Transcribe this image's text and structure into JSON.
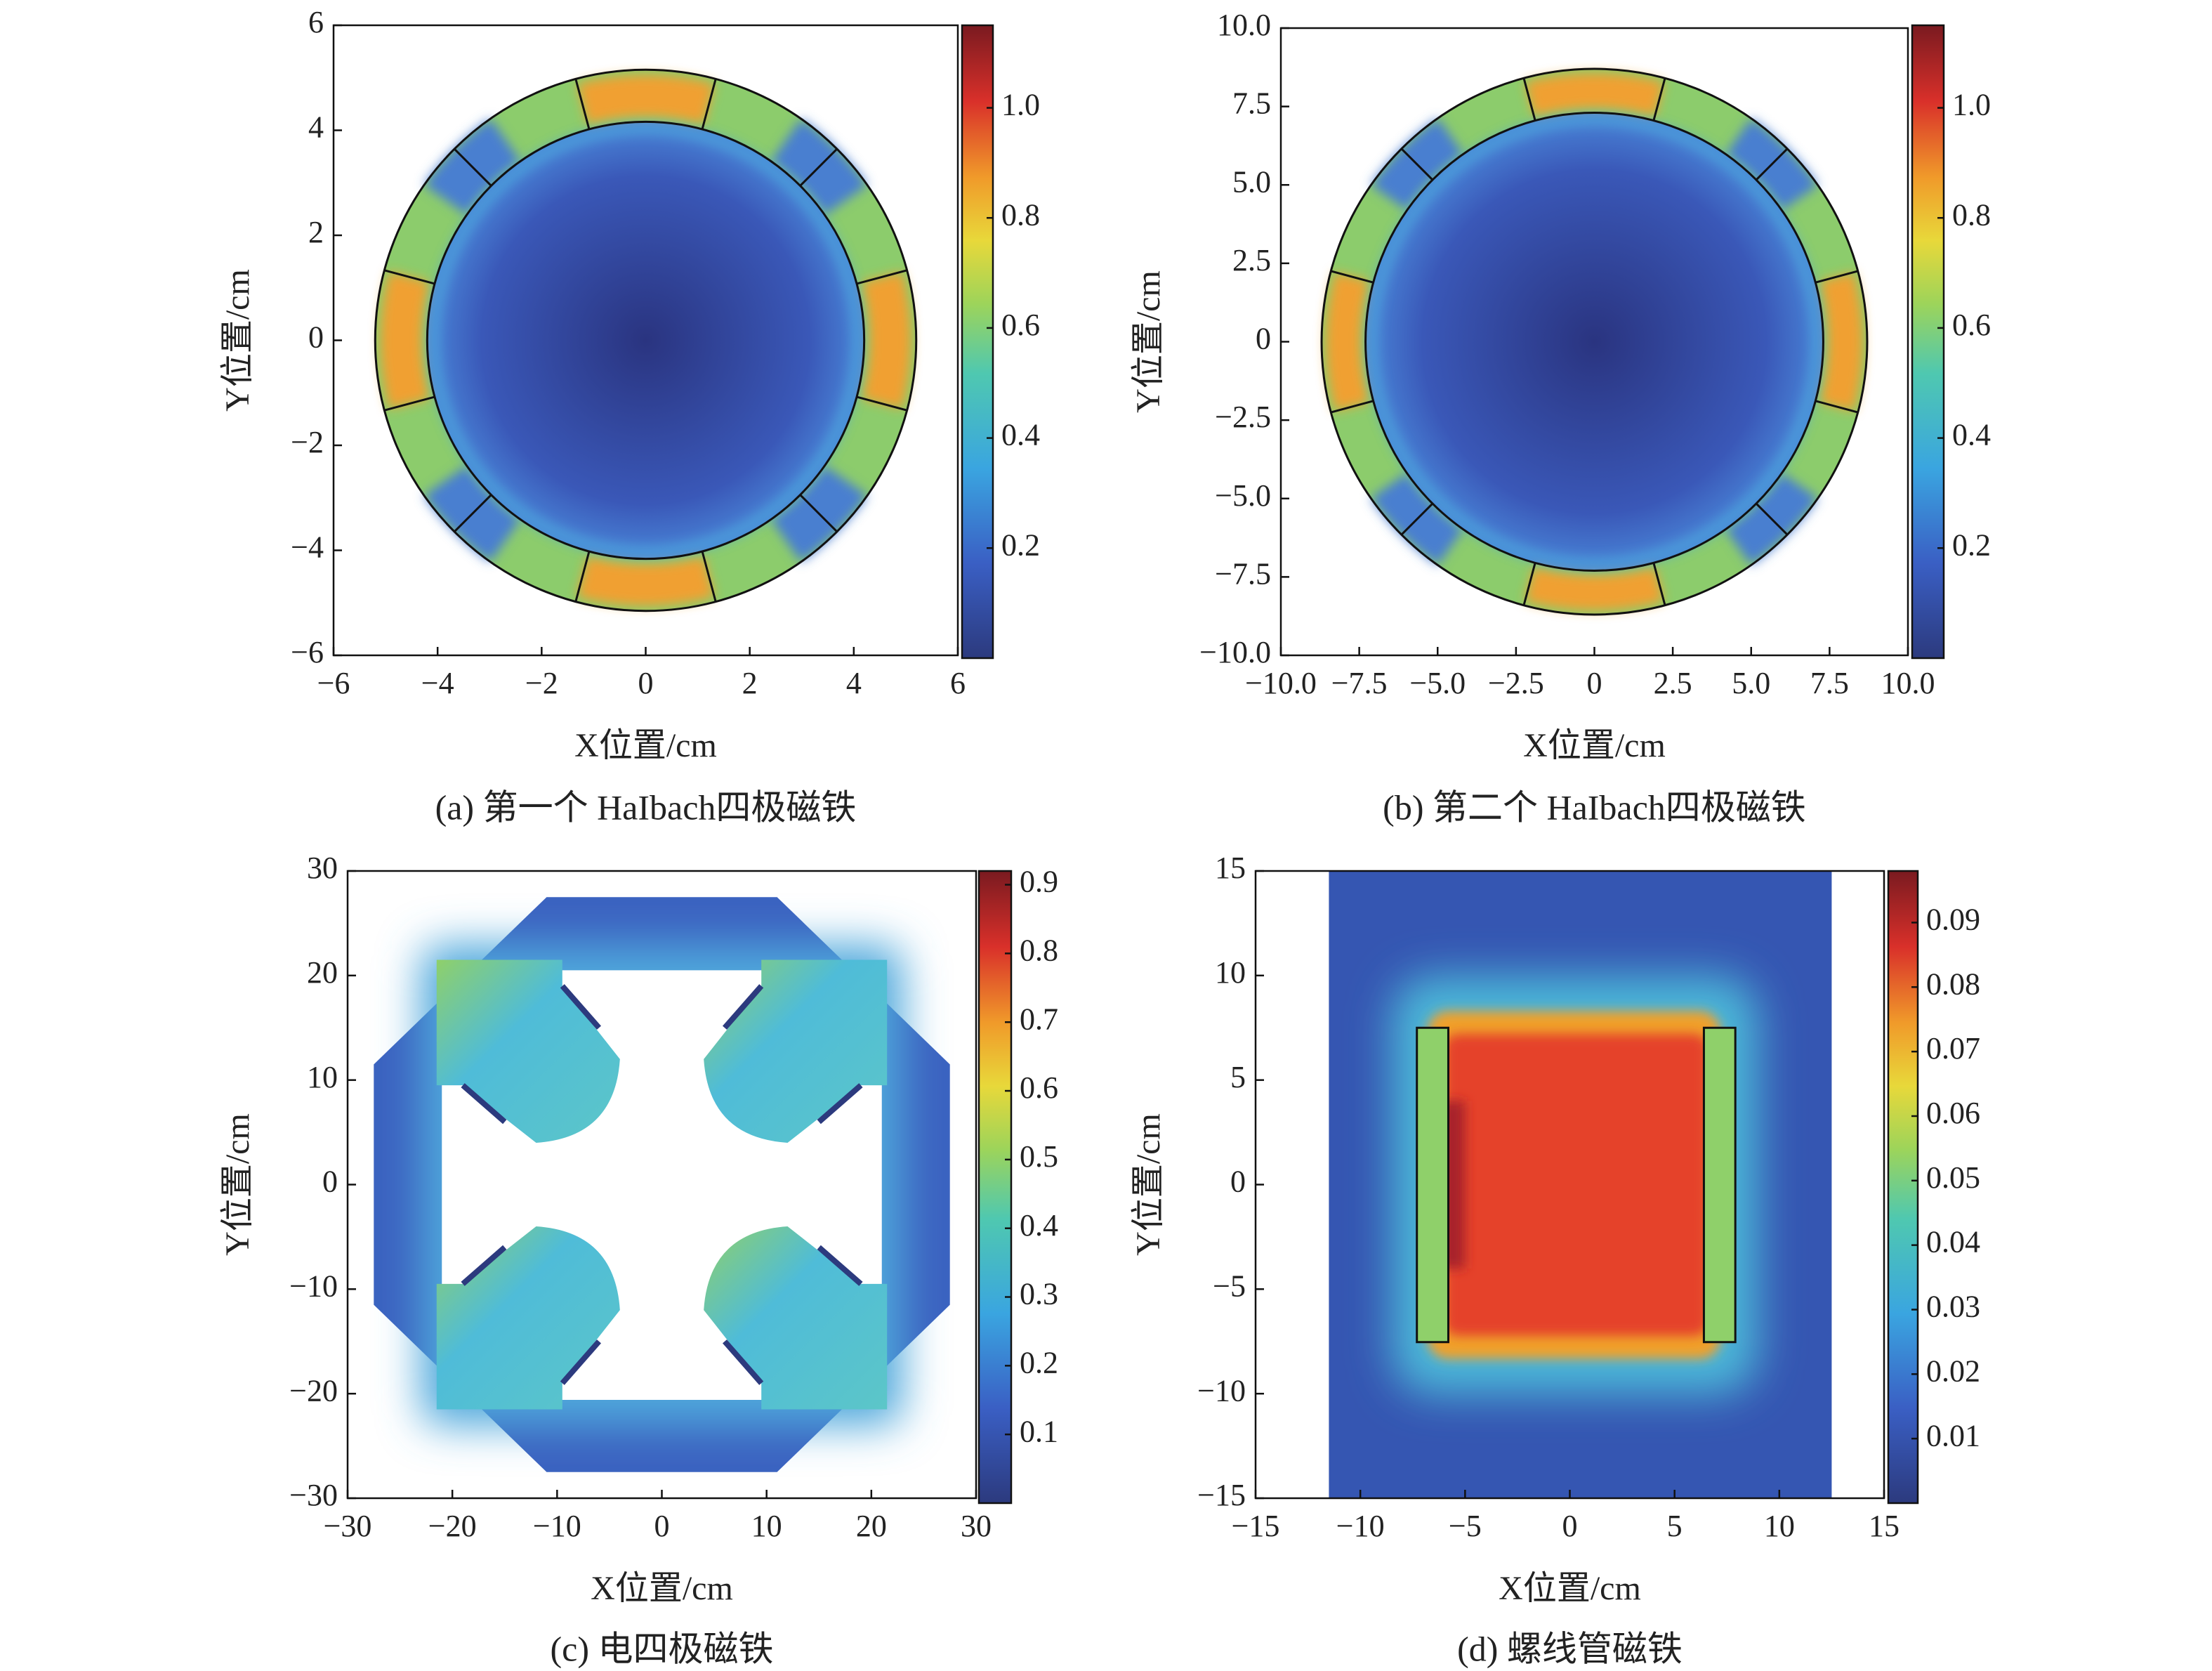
{
  "chart_data": [
    {
      "type": "heatmap",
      "caption": "(a) 第一个 HaIbach四极磁铁",
      "xlabel": "X位置/cm",
      "ylabel": "Y位置/cm",
      "xlim": [
        -6,
        6
      ],
      "ylim": [
        -6,
        6
      ],
      "xticks": [
        {
          "value": -6,
          "label": "−6"
        },
        {
          "value": -4,
          "label": "−4"
        },
        {
          "value": -2,
          "label": "−2"
        },
        0,
        2,
        4,
        6
      ],
      "yticks": [
        {
          "value": -6,
          "label": "−6"
        },
        {
          "value": -4,
          "label": "−4"
        },
        {
          "value": -2,
          "label": "−2"
        },
        0,
        2,
        4,
        6
      ],
      "colorbar": {
        "lim": [
          0,
          1.15
        ],
        "ticks": [
          0.2,
          0.4,
          0.6,
          0.8,
          {
            "value": 1,
            "label": "1.0"
          }
        ]
      }
    },
    {
      "type": "heatmap",
      "caption": "(b) 第二个 HaIbach四极磁铁",
      "xlabel": "X位置/cm",
      "ylabel": "Y位置/cm",
      "xlim": [
        -10,
        10
      ],
      "ylim": [
        -10,
        10
      ],
      "xticks": [
        {
          "value": -10,
          "label": "−10.0"
        },
        {
          "value": -7.5,
          "label": "−7.5"
        },
        {
          "value": -5,
          "label": "−5.0"
        },
        {
          "value": -2.5,
          "label": "−2.5"
        },
        0,
        2.5,
        {
          "value": 5,
          "label": "5.0"
        },
        7.5,
        {
          "value": 10,
          "label": "10.0"
        }
      ],
      "yticks": [
        {
          "value": -10,
          "label": "−10.0"
        },
        {
          "value": -7.5,
          "label": "−7.5"
        },
        {
          "value": -5,
          "label": "−5.0"
        },
        {
          "value": -2.5,
          "label": "−2.5"
        },
        0,
        2.5,
        {
          "value": 5,
          "label": "5.0"
        },
        7.5,
        {
          "value": 10,
          "label": "10.0"
        }
      ],
      "colorbar": {
        "lim": [
          0,
          1.15
        ],
        "ticks": [
          0.2,
          0.4,
          0.6,
          0.8,
          {
            "value": 1,
            "label": "1.0"
          }
        ]
      }
    },
    {
      "type": "heatmap",
      "caption": "(c) 电四极磁铁",
      "xlabel": "X位置/cm",
      "ylabel": "Y位置/cm",
      "xlim": [
        -30,
        30
      ],
      "ylim": [
        -30,
        30
      ],
      "xticks": [
        {
          "value": -30,
          "label": "−30"
        },
        {
          "value": -20,
          "label": "−20"
        },
        {
          "value": -10,
          "label": "−10"
        },
        0,
        10,
        20,
        30
      ],
      "yticks": [
        {
          "value": -30,
          "label": "−30"
        },
        {
          "value": -20,
          "label": "−20"
        },
        {
          "value": -10,
          "label": "−10"
        },
        0,
        10,
        20,
        30
      ],
      "colorbar": {
        "lim": [
          0,
          0.92
        ],
        "ticks": [
          0.1,
          0.2,
          0.3,
          0.4,
          0.5,
          0.6,
          0.7,
          0.8,
          0.9
        ]
      }
    },
    {
      "type": "heatmap",
      "caption": "(d) 螺线管磁铁",
      "xlabel": "X位置/cm",
      "ylabel": "Y位置/cm",
      "xlim": [
        -15,
        15
      ],
      "ylim": [
        -15,
        15
      ],
      "xticks": [
        {
          "value": -15,
          "label": "−15"
        },
        {
          "value": -10,
          "label": "−10"
        },
        {
          "value": -5,
          "label": "−5"
        },
        0,
        5,
        10,
        15
      ],
      "yticks": [
        {
          "value": -15,
          "label": "−15"
        },
        {
          "value": -10,
          "label": "−10"
        },
        {
          "value": -5,
          "label": "−5"
        },
        0,
        5,
        10,
        15
      ],
      "colorbar": {
        "lim": [
          0,
          0.098
        ],
        "ticks": [
          0.01,
          0.02,
          0.03,
          0.04,
          0.05,
          0.06,
          0.07,
          0.08,
          0.09
        ]
      }
    }
  ]
}
